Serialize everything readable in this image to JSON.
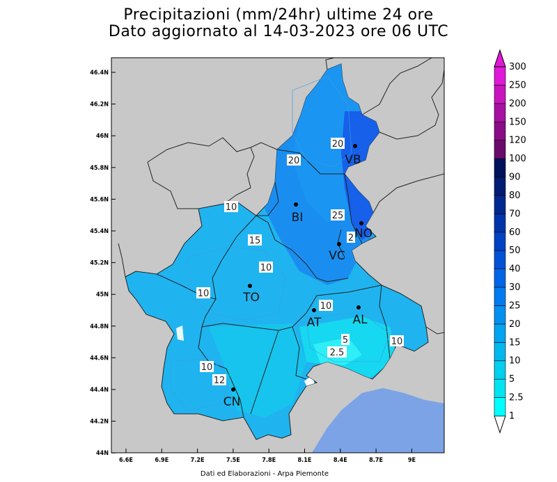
{
  "title_line1": "Precipitazioni (mm/24hr) ultime 24 ore",
  "title_line2": "Dato aggiornato al 14-03-2023 ore 06 UTC",
  "credit": "Dati ed Elaborazioni - Arpa Piemonte",
  "y_ticks": [
    "46.4N",
    "46.2N",
    "46N",
    "45.8N",
    "45.6N",
    "45.4N",
    "45.2N",
    "45N",
    "44.8N",
    "44.6N",
    "44.4N",
    "44.2N",
    "44N"
  ],
  "x_ticks": [
    "6.6E",
    "6.9E",
    "7.2E",
    "7.5E",
    "7.8E",
    "8.1E",
    "8.4E",
    "8.7E",
    "9E"
  ],
  "colorbar": {
    "levels": [
      "1",
      "2.5",
      "5",
      "10",
      "15",
      "20",
      "25",
      "30",
      "40",
      "50",
      "60",
      "70",
      "80",
      "90",
      "100",
      "120",
      "150",
      "200",
      "250",
      "300"
    ],
    "colors": [
      "#ffffff",
      "#00ffff",
      "#00e4f2",
      "#00cfee",
      "#00b8ee",
      "#00a4f0",
      "#0090f2",
      "#007cf0",
      "#0066e8",
      "#0052d6",
      "#0042c2",
      "#0034aa",
      "#002890",
      "#001c74",
      "#00125a",
      "#6a0a6a",
      "#8a0c86",
      "#a810a2",
      "#c814be",
      "#e018d8"
    ]
  },
  "cities": [
    {
      "name": "VB"
    },
    {
      "name": "BI"
    },
    {
      "name": "NO"
    },
    {
      "name": "VC"
    },
    {
      "name": "TO"
    },
    {
      "name": "AT"
    },
    {
      "name": "AL"
    },
    {
      "name": "CN"
    }
  ],
  "contour_labels": [
    "20",
    "20",
    "10",
    "25",
    "2",
    "15",
    "10",
    "10",
    "10",
    "5",
    "2.5",
    "10",
    "10",
    "12"
  ],
  "colors": {
    "background_land": "#c8c8c8",
    "sea": "#7ba3e6",
    "region_fill": "#1fb4f0",
    "north_fill": "#1a8ef0",
    "vb_fill": "#1660ea"
  }
}
